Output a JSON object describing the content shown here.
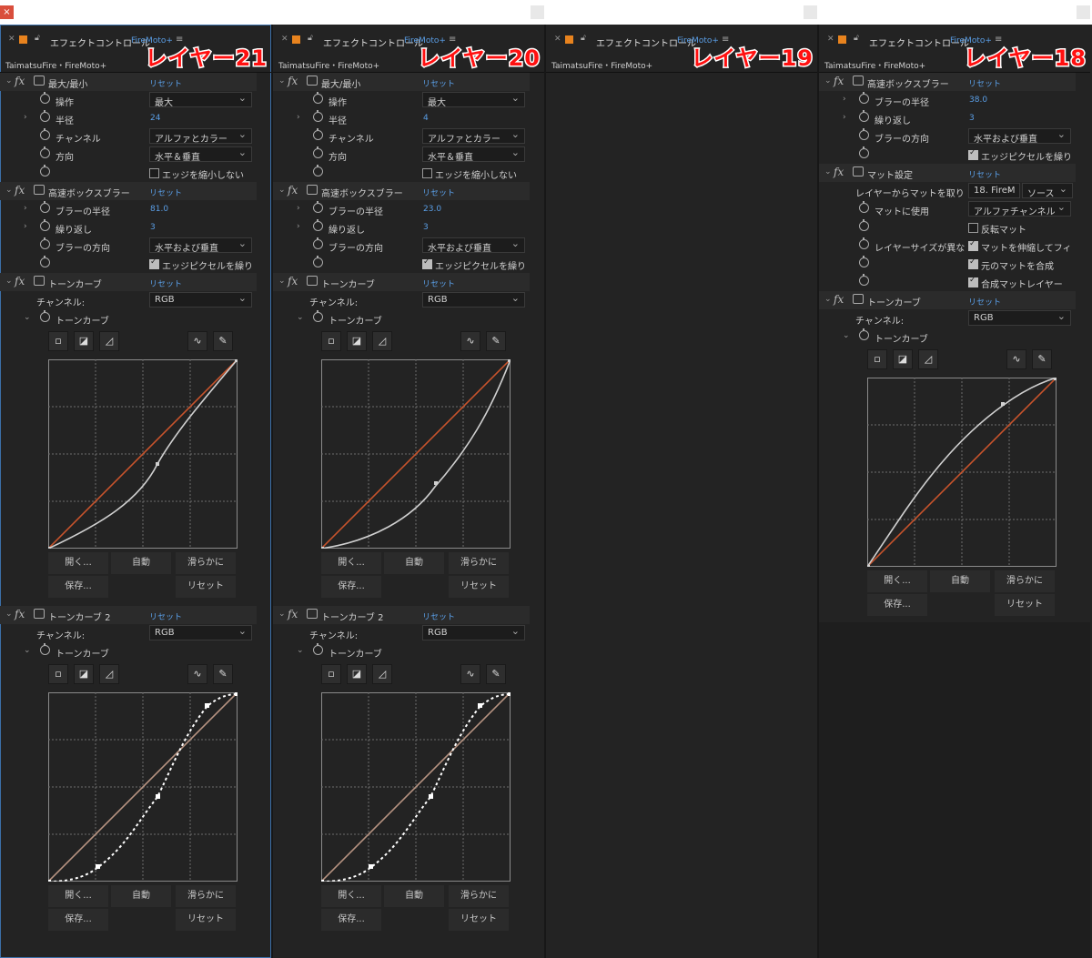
{
  "panel_title": "エフェクトコントロール",
  "comp_name": "TaimatsuFire・FireMoto+",
  "layer_link": "FireMoto+",
  "reset_label": "リセット",
  "maxmin": {
    "name": "最大/最小",
    "operation_label": "操作",
    "operation_value": "最大",
    "radius_label": "半径",
    "channel_label": "チャンネル",
    "channel_value": "アルファとカラー",
    "direction_label": "方向",
    "direction_value": "水平＆垂直",
    "shrink_label": "エッジを縮小しない"
  },
  "boxblur": {
    "name": "高速ボックスブラー",
    "radius_label": "ブラーの半径",
    "iter_label": "繰り返し",
    "dir_label": "ブラーの方向",
    "dir_value": "水平および垂直",
    "repeat_edge_label": "エッジピクセルを繰り"
  },
  "matte": {
    "name": "マット設定",
    "take_label": "レイヤーからマットを取り",
    "take_value": "18. FireM",
    "source_value": "ソース",
    "use_label": "マットに使用",
    "use_value": "アルファチャンネル",
    "invert_label": "反転マット",
    "size_label": "レイヤーサイズが異な",
    "stretch_label": "マットを伸縮してフィッ",
    "comp_orig_label": "元のマットを合成",
    "premult_label": "合成マットレイヤー"
  },
  "curves": {
    "name1": "トーンカーブ",
    "name2": "トーンカーブ 2",
    "channel_label": "チャンネル:",
    "channel_value": "RGB",
    "sub_label": "トーンカーブ",
    "open_label": "開く...",
    "auto_label": "自動",
    "smooth_label": "滑らかに",
    "save_label": "保存...",
    "reset_label": "リセット"
  },
  "panels": [
    {
      "tag": "レイヤー21",
      "radius": "24",
      "blur_radius": "81.0",
      "iter": "3"
    },
    {
      "tag": "レイヤー20",
      "radius": "4",
      "blur_radius": "23.0",
      "iter": "3"
    },
    {
      "tag": "レイヤー19"
    },
    {
      "tag": "レイヤー18",
      "blur_radius": "38.0",
      "iter": "3"
    }
  ],
  "colors": {
    "bg": "#232323",
    "accent_blue": "#5a9ee6",
    "tag_red": "#ff1010",
    "orange_square": "#e8831e",
    "diag": "#c8542c"
  }
}
